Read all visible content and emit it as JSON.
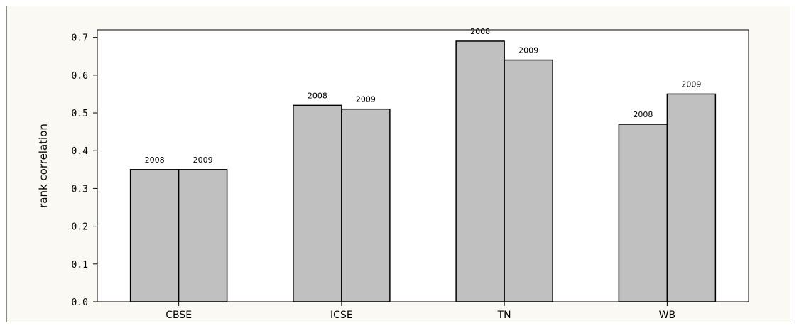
{
  "chart_data": {
    "type": "bar",
    "title": "",
    "xlabel": "",
    "ylabel": "rank correlation",
    "ylim": [
      0,
      0.72
    ],
    "yticks": [
      0.0,
      0.1,
      0.2,
      0.3,
      0.4,
      0.5,
      0.6,
      0.7
    ],
    "ytick_labels": [
      "0.0",
      "0.1",
      "0.2",
      "0.3",
      "0.4",
      "0.5",
      "0.6",
      "0.7"
    ],
    "categories": [
      "CBSE",
      "ICSE",
      "TN",
      "WB"
    ],
    "series": [
      {
        "values": [
          0.35,
          0.52,
          0.69,
          0.47
        ]
      },
      {
        "values": [
          0.35,
          0.51,
          0.64,
          0.55
        ]
      }
    ],
    "bar_labels": [
      [
        "2008",
        "2009"
      ],
      [
        "2008",
        "2009"
      ],
      [
        "2008",
        "2009"
      ],
      [
        "2008",
        "2009"
      ]
    ],
    "bar_color": "#c0c0c0",
    "plot_background": "#ffffff",
    "page_background": "#fbf9f4",
    "grid": false,
    "legend": "none"
  }
}
